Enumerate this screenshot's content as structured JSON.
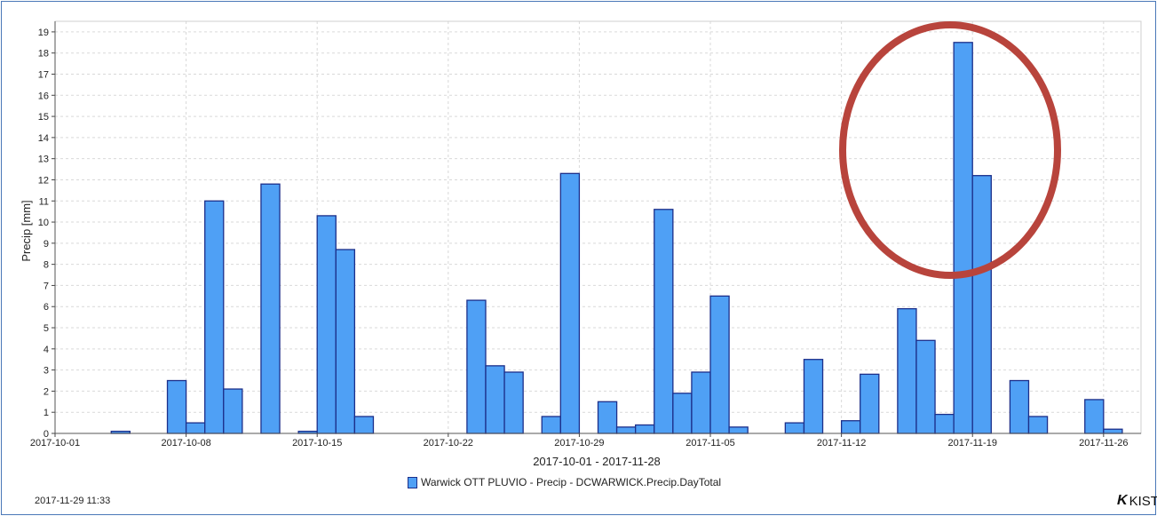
{
  "chart_data": {
    "type": "bar",
    "ylabel": "Precip [mm]",
    "xlabel": "2017-10-01 - 2017-11-28",
    "ylim": [
      0,
      19.5
    ],
    "yticks": [
      "0",
      "1",
      "2",
      "3",
      "4",
      "5",
      "6",
      "7",
      "8",
      "9",
      "10",
      "11",
      "12",
      "13",
      "14",
      "15",
      "16",
      "17",
      "18",
      "19"
    ],
    "xticks": [
      {
        "day": 0,
        "label": "2017-10-01"
      },
      {
        "day": 7,
        "label": "2017-10-08"
      },
      {
        "day": 14,
        "label": "2017-10-15"
      },
      {
        "day": 21,
        "label": "2017-10-22"
      },
      {
        "day": 28,
        "label": "2017-10-29"
      },
      {
        "day": 35,
        "label": "2017-11-05"
      },
      {
        "day": 42,
        "label": "2017-11-12"
      },
      {
        "day": 49,
        "label": "2017-11-19"
      },
      {
        "day": 56,
        "label": "2017-11-26"
      }
    ],
    "x_start": "2017-10-01",
    "x_range_days": [
      0,
      58
    ],
    "grid": true,
    "legend_position": "bottom-center",
    "series": [
      {
        "name": "Warwick OTT PLUVIO - Precip - DCWARWICK.Precip.DayTotal",
        "color": "#4fa0f5",
        "values": [
          0,
          0,
          0,
          0.1,
          0,
          0,
          2.5,
          0.5,
          11,
          2.1,
          0,
          11.8,
          0,
          0.1,
          10.3,
          8.7,
          0.8,
          0,
          0,
          0,
          0,
          0,
          6.3,
          3.2,
          2.9,
          0,
          0.8,
          12.3,
          0,
          1.5,
          0.3,
          0.4,
          10.6,
          1.9,
          2.9,
          6.5,
          0.3,
          0,
          0,
          0.5,
          3.5,
          0,
          0.6,
          2.8,
          0,
          5.9,
          4.4,
          0.9,
          18.5,
          12.2,
          0,
          2.5,
          0.8,
          0,
          0,
          1.6,
          0.2,
          0
        ]
      }
    ],
    "annotation": {
      "type": "ellipse",
      "color": "#b8443c",
      "around_days": [
        48,
        49
      ]
    }
  },
  "footer": {
    "timestamp": "2017-11-29  11:33",
    "logo_text": "KIST"
  }
}
